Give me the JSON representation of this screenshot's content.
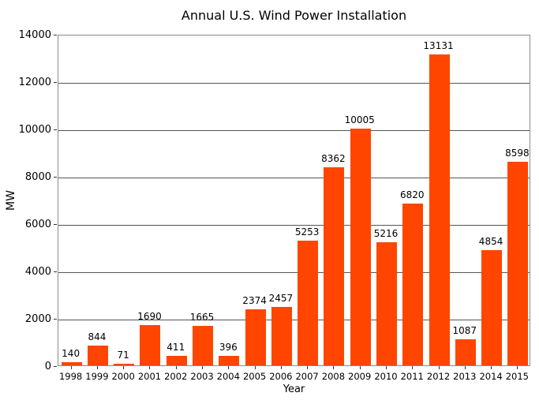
{
  "chart_data": {
    "type": "bar",
    "title": "Annual U.S. Wind Power Installation",
    "xlabel": "Year",
    "ylabel": "MW",
    "categories": [
      "1998",
      "1999",
      "2000",
      "2001",
      "2002",
      "2003",
      "2004",
      "2005",
      "2006",
      "2007",
      "2008",
      "2009",
      "2010",
      "2011",
      "2012",
      "2013",
      "2014",
      "2015"
    ],
    "values": [
      140,
      844,
      71,
      1690,
      411,
      1665,
      396,
      2374,
      2457,
      5253,
      8362,
      10005,
      5216,
      6820,
      13131,
      1087,
      4854,
      8598
    ],
    "bar_value_labels": [
      "140",
      "844",
      "71",
      "1690",
      "411",
      "1665",
      "396",
      "2374",
      "2457",
      "5253",
      "8362",
      "10005",
      "5216",
      "6820",
      "13131",
      "1087",
      "4854",
      "8598"
    ],
    "ylim": [
      0,
      14000
    ],
    "yticks": [
      0,
      2000,
      4000,
      6000,
      8000,
      10000,
      12000,
      14000
    ],
    "grid": "horizontal",
    "legend": "none",
    "bar_color": "#ff4500",
    "bar_width_fraction": 0.78
  }
}
